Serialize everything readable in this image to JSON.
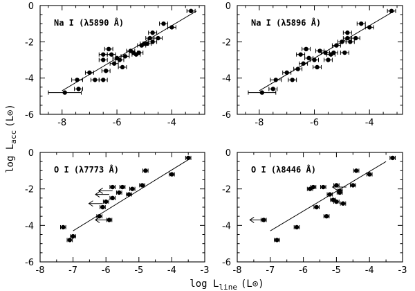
{
  "chart_data": {
    "type": "scatter",
    "xlabel": "log L_line (L_⊙)",
    "ylabel": "log L_acc (L_⊙)",
    "xlabel_parts": {
      "base": "log L",
      "sub": "line",
      "unit": "(L",
      "sun": "⊙",
      "close": ")"
    },
    "ylabel_parts": {
      "base": "log L",
      "sub": "acc",
      "unit": "(L",
      "sun": "⊙",
      "close": ")"
    },
    "panels": [
      {
        "label": "Na I (λ5890 Å)",
        "xlim": [
          -8.8,
          -2.8
        ],
        "ylim": [
          -6,
          0
        ],
        "xticks": [
          -8,
          -6,
          -4
        ],
        "xtick_labels": [
          "-8",
          "-6",
          "-4"
        ],
        "yticks": [
          -6,
          -4,
          -2,
          0
        ],
        "ytick_labels": [
          "-6",
          "-4",
          "-2",
          "0"
        ],
        "fit": [
          [
            -8.0,
            -4.7
          ],
          [
            -3.1,
            -0.3
          ]
        ],
        "points": [
          {
            "x": -7.9,
            "y": -4.8,
            "xerr": 0.6
          },
          {
            "x": -7.4,
            "y": -4.6,
            "xerr": 0.15
          },
          {
            "x": -7.45,
            "y": -4.1,
            "xerr": 0.2
          },
          {
            "x": -7.0,
            "y": -3.7,
            "xerr": 0.15
          },
          {
            "x": -6.8,
            "y": -4.1,
            "xerr": 0.15
          },
          {
            "x": -6.5,
            "y": -4.1,
            "xerr": 0.15
          },
          {
            "x": -6.4,
            "y": -3.6,
            "xerr": 0.15
          },
          {
            "x": -6.5,
            "y": -3.0,
            "xerr": 0.15
          },
          {
            "x": -6.5,
            "y": -2.7,
            "xerr": 0.15
          },
          {
            "x": -6.3,
            "y": -2.4,
            "xerr": 0.15
          },
          {
            "x": -6.2,
            "y": -2.7,
            "xerr": 0.15
          },
          {
            "x": -6.0,
            "y": -2.9,
            "xerr": 0.15
          },
          {
            "x": -6.1,
            "y": -3.2,
            "xerr": 0.15
          },
          {
            "x": -5.9,
            "y": -3.0,
            "xerr": 0.15
          },
          {
            "x": -5.8,
            "y": -3.4,
            "xerr": 0.15
          },
          {
            "x": -5.7,
            "y": -2.8,
            "xerr": 0.15
          },
          {
            "x": -5.5,
            "y": -2.5,
            "xerr": 0.15
          },
          {
            "x": -5.4,
            "y": -2.6,
            "xerr": 0.15
          },
          {
            "x": -5.3,
            "y": -2.7,
            "xerr": 0.15
          },
          {
            "x": -5.2,
            "y": -2.6,
            "xerr": 0.15
          },
          {
            "x": -5.1,
            "y": -2.2,
            "xerr": 0.15
          },
          {
            "x": -5.0,
            "y": -2.1,
            "xerr": 0.15
          },
          {
            "x": -4.9,
            "y": -2.1,
            "xerr": 0.15
          },
          {
            "x": -4.8,
            "y": -1.8,
            "xerr": 0.15
          },
          {
            "x": -4.7,
            "y": -2.0,
            "xerr": 0.15
          },
          {
            "x": -4.5,
            "y": -1.8,
            "xerr": 0.15
          },
          {
            "x": -4.7,
            "y": -1.5,
            "xerr": 0.15
          },
          {
            "x": -4.3,
            "y": -1.0,
            "xerr": 0.15
          },
          {
            "x": -4.0,
            "y": -1.2,
            "xerr": 0.15
          },
          {
            "x": -3.3,
            "y": -0.3,
            "xerr": 0.15
          }
        ],
        "upper_limits": []
      },
      {
        "label": "Na I (λ5896 Å)",
        "xlim": [
          -8.8,
          -2.8
        ],
        "ylim": [
          -6,
          0
        ],
        "xticks": [
          -8,
          -6,
          -4
        ],
        "xtick_labels": [
          "-8",
          "-6",
          "-4"
        ],
        "yticks": [
          -6,
          -4,
          -2,
          0
        ],
        "ytick_labels": [
          "-6",
          "-4",
          "-2",
          "0"
        ],
        "fit": [
          [
            -8.0,
            -4.7
          ],
          [
            -3.1,
            -0.3
          ]
        ],
        "points": [
          {
            "x": -7.9,
            "y": -4.8,
            "xerr": 0.5
          },
          {
            "x": -7.5,
            "y": -4.6,
            "xerr": 0.15
          },
          {
            "x": -7.4,
            "y": -4.1,
            "xerr": 0.2
          },
          {
            "x": -7.0,
            "y": -3.7,
            "xerr": 0.15
          },
          {
            "x": -6.8,
            "y": -4.1,
            "xerr": 0.15
          },
          {
            "x": -6.6,
            "y": -3.5,
            "xerr": 0.15
          },
          {
            "x": -6.5,
            "y": -2.7,
            "xerr": 0.15
          },
          {
            "x": -6.4,
            "y": -3.2,
            "xerr": 0.15
          },
          {
            "x": -6.3,
            "y": -2.4,
            "xerr": 0.15
          },
          {
            "x": -6.2,
            "y": -2.9,
            "xerr": 0.15
          },
          {
            "x": -6.0,
            "y": -3.0,
            "xerr": 0.15
          },
          {
            "x": -5.9,
            "y": -3.4,
            "xerr": 0.15
          },
          {
            "x": -5.8,
            "y": -2.5,
            "xerr": 0.15
          },
          {
            "x": -5.6,
            "y": -2.6,
            "xerr": 0.15
          },
          {
            "x": -5.5,
            "y": -3.0,
            "xerr": 0.15
          },
          {
            "x": -5.4,
            "y": -2.7,
            "xerr": 0.15
          },
          {
            "x": -5.3,
            "y": -2.6,
            "xerr": 0.15
          },
          {
            "x": -5.2,
            "y": -2.2,
            "xerr": 0.15
          },
          {
            "x": -5.0,
            "y": -2.0,
            "xerr": 0.15
          },
          {
            "x": -4.9,
            "y": -2.6,
            "xerr": 0.15
          },
          {
            "x": -4.8,
            "y": -1.8,
            "xerr": 0.15
          },
          {
            "x": -4.7,
            "y": -2.0,
            "xerr": 0.15
          },
          {
            "x": -4.8,
            "y": -1.5,
            "xerr": 0.15
          },
          {
            "x": -4.5,
            "y": -1.8,
            "xerr": 0.15
          },
          {
            "x": -4.3,
            "y": -1.0,
            "xerr": 0.15
          },
          {
            "x": -4.0,
            "y": -1.2,
            "xerr": 0.15
          },
          {
            "x": -3.2,
            "y": -0.3,
            "xerr": 0.15
          }
        ],
        "upper_limits": []
      },
      {
        "label": "O I (λ7773 Å)",
        "xlim": [
          -8,
          -3
        ],
        "ylim": [
          -6,
          0
        ],
        "xticks": [
          -8,
          -7,
          -6,
          -5,
          -4,
          -3
        ],
        "xtick_labels": [
          "-8",
          "-7",
          "-6",
          "-5",
          "-4",
          "-3"
        ],
        "yticks": [
          -6,
          -4,
          -2,
          0
        ],
        "ytick_labels": [
          "-6",
          "-4",
          "-2",
          "0"
        ],
        "fit": [
          [
            -7.0,
            -4.3
          ],
          [
            -3.5,
            -0.4
          ]
        ],
        "points": [
          {
            "x": -7.3,
            "y": -4.1,
            "xerr": 0.08
          },
          {
            "x": -7.1,
            "y": -4.8,
            "xerr": 0.08
          },
          {
            "x": -7.0,
            "y": -4.6,
            "xerr": 0.08
          },
          {
            "x": -6.2,
            "y": -3.5,
            "xerr": 0.08
          },
          {
            "x": -6.1,
            "y": -3.0,
            "xerr": 0.08
          },
          {
            "x": -6.0,
            "y": -2.7,
            "xerr": 0.08
          },
          {
            "x": -5.9,
            "y": -3.7,
            "xerr": 0.08
          },
          {
            "x": -5.8,
            "y": -2.5,
            "xerr": 0.08
          },
          {
            "x": -5.8,
            "y": -1.9,
            "xerr": 0.08
          },
          {
            "x": -5.6,
            "y": -2.2,
            "xerr": 0.08
          },
          {
            "x": -5.5,
            "y": -1.9,
            "xerr": 0.08
          },
          {
            "x": -5.3,
            "y": -2.3,
            "xerr": 0.08
          },
          {
            "x": -5.2,
            "y": -2.0,
            "xerr": 0.08
          },
          {
            "x": -4.9,
            "y": -1.8,
            "xerr": 0.08
          },
          {
            "x": -4.8,
            "y": -1.0,
            "xerr": 0.08
          },
          {
            "x": -4.0,
            "y": -1.2,
            "xerr": 0.08
          },
          {
            "x": -3.5,
            "y": -0.3,
            "xerr": 0.08
          }
        ],
        "upper_limits": [
          {
            "x": -5.9,
            "y": -2.3
          },
          {
            "x": -6.1,
            "y": -2.8
          },
          {
            "x": -5.9,
            "y": -3.7
          },
          {
            "x": -5.8,
            "y": -2.1
          }
        ]
      },
      {
        "label": "O I (λ8446 Å)",
        "xlim": [
          -8,
          -3
        ],
        "ylim": [
          -6,
          0
        ],
        "xticks": [
          -8,
          -7,
          -6,
          -5,
          -4,
          -3
        ],
        "xtick_labels": [
          "-8",
          "-7",
          "-6",
          "-5",
          "-4",
          "-3"
        ],
        "yticks": [
          -6,
          -4,
          -2,
          0
        ],
        "ytick_labels": [
          "-6",
          "-4",
          "-2",
          "0"
        ],
        "fit": [
          [
            -7.0,
            -4.3
          ],
          [
            -3.5,
            -0.5
          ]
        ],
        "points": [
          {
            "x": -7.2,
            "y": -3.7,
            "xerr": 0.08
          },
          {
            "x": -6.8,
            "y": -4.8,
            "xerr": 0.08
          },
          {
            "x": -6.2,
            "y": -4.1,
            "xerr": 0.08
          },
          {
            "x": -5.8,
            "y": -2.0,
            "xerr": 0.08
          },
          {
            "x": -5.7,
            "y": -1.9,
            "xerr": 0.08
          },
          {
            "x": -5.6,
            "y": -3.0,
            "xerr": 0.08
          },
          {
            "x": -5.4,
            "y": -1.9,
            "xerr": 0.08
          },
          {
            "x": -5.3,
            "y": -3.5,
            "xerr": 0.08
          },
          {
            "x": -5.2,
            "y": -2.3,
            "xerr": 0.08
          },
          {
            "x": -5.1,
            "y": -2.6,
            "xerr": 0.08
          },
          {
            "x": -5.0,
            "y": -1.8,
            "xerr": 0.08
          },
          {
            "x": -5.0,
            "y": -2.7,
            "xerr": 0.08
          },
          {
            "x": -4.9,
            "y": -2.2,
            "xerr": 0.08
          },
          {
            "x": -4.9,
            "y": -2.1,
            "xerr": 0.08
          },
          {
            "x": -4.8,
            "y": -2.8,
            "xerr": 0.08
          },
          {
            "x": -4.5,
            "y": -1.8,
            "xerr": 0.08
          },
          {
            "x": -4.4,
            "y": -1.0,
            "xerr": 0.08
          },
          {
            "x": -4.0,
            "y": -1.2,
            "xerr": 0.08
          },
          {
            "x": -3.3,
            "y": -0.3,
            "xerr": 0.08
          }
        ],
        "upper_limits": [
          {
            "x": -7.2,
            "y": -3.7
          },
          {
            "x": -4.7,
            "y": -1.9
          }
        ]
      }
    ]
  }
}
